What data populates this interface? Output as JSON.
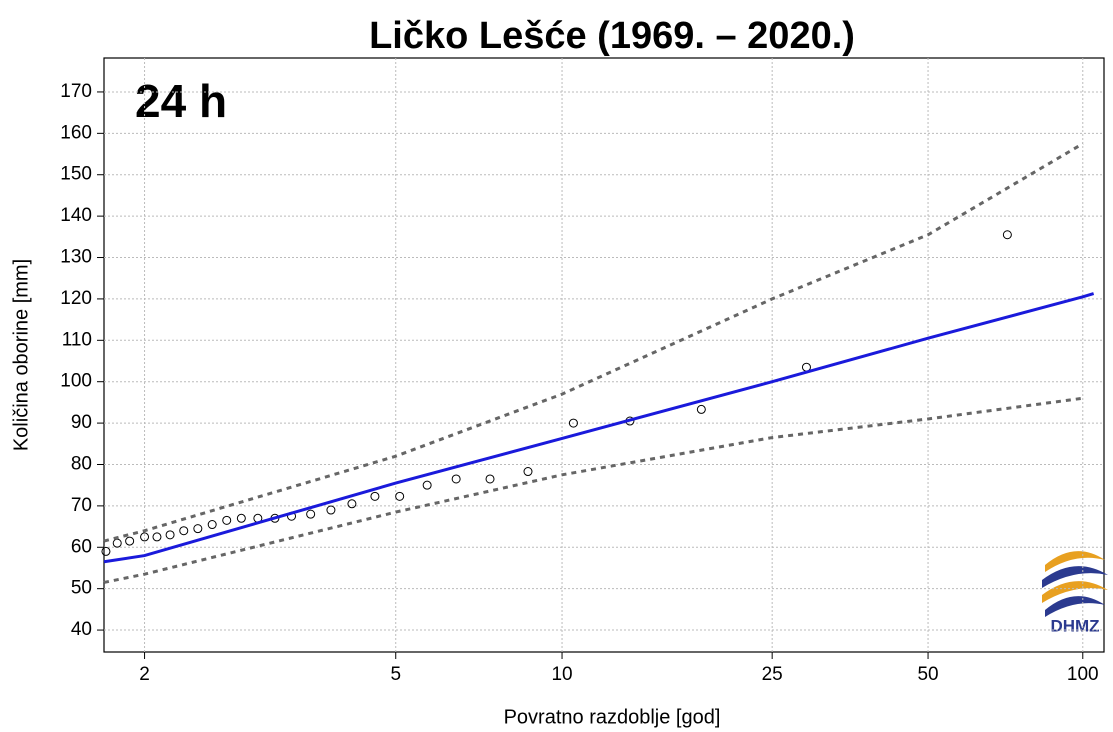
{
  "chart_data": {
    "type": "line",
    "title": "Ličko Lešće (1969. – 2020.)",
    "annotation": "24 h",
    "logo_text": "DHMZ",
    "x_label": "Povratno razdoblje [god]",
    "y_label": "Količina oborine [mm]",
    "xscale": "gumbel",
    "xlim": [
      1.77,
      110
    ],
    "xticks": [
      2,
      5,
      10,
      25,
      50,
      100
    ],
    "ylim": [
      34.7,
      178.2
    ],
    "yticks": [
      40,
      50,
      60,
      70,
      80,
      90,
      100,
      110,
      120,
      130,
      140,
      150,
      160,
      170
    ],
    "grid": true,
    "series": [
      {
        "style": "points",
        "color": "#000000",
        "x": [
          1.78,
          1.84,
          1.91,
          2.0,
          2.08,
          2.17,
          2.27,
          2.38,
          2.5,
          2.63,
          2.77,
          2.94,
          3.13,
          3.33,
          3.58,
          3.87,
          4.2,
          4.6,
          5.08,
          5.68,
          6.4,
          7.37,
          8.65,
          10.5,
          13.4,
          18.3,
          29.1,
          71.3
        ],
        "values": [
          59,
          61,
          61.5,
          62.5,
          62.5,
          63,
          64,
          64.5,
          65.5,
          66.5,
          67,
          67,
          67,
          67.5,
          68,
          69,
          70.5,
          72.3,
          72.3,
          75,
          76.5,
          76.5,
          78.3,
          90,
          90.5,
          93.3,
          103.5,
          135.5
        ]
      },
      {
        "style": "solid",
        "color": "#1a1adb",
        "x": [
          1.77,
          2,
          5,
          10,
          25,
          50,
          100,
          105
        ],
        "values": [
          56.5,
          58,
          75.5,
          86.3,
          100,
          110.5,
          120.5,
          121.3
        ]
      },
      {
        "style": "dashed",
        "color": "#666666",
        "x": [
          1.77,
          2,
          5,
          10,
          25,
          50,
          100
        ],
        "values": [
          61.5,
          64,
          82,
          97,
          120,
          135.5,
          157.5
        ]
      },
      {
        "style": "dashed",
        "color": "#666666",
        "x": [
          1.77,
          2,
          5,
          10,
          25,
          50,
          100
        ],
        "values": [
          51.5,
          53.5,
          68.5,
          77.5,
          86.5,
          91,
          96
        ]
      }
    ]
  }
}
